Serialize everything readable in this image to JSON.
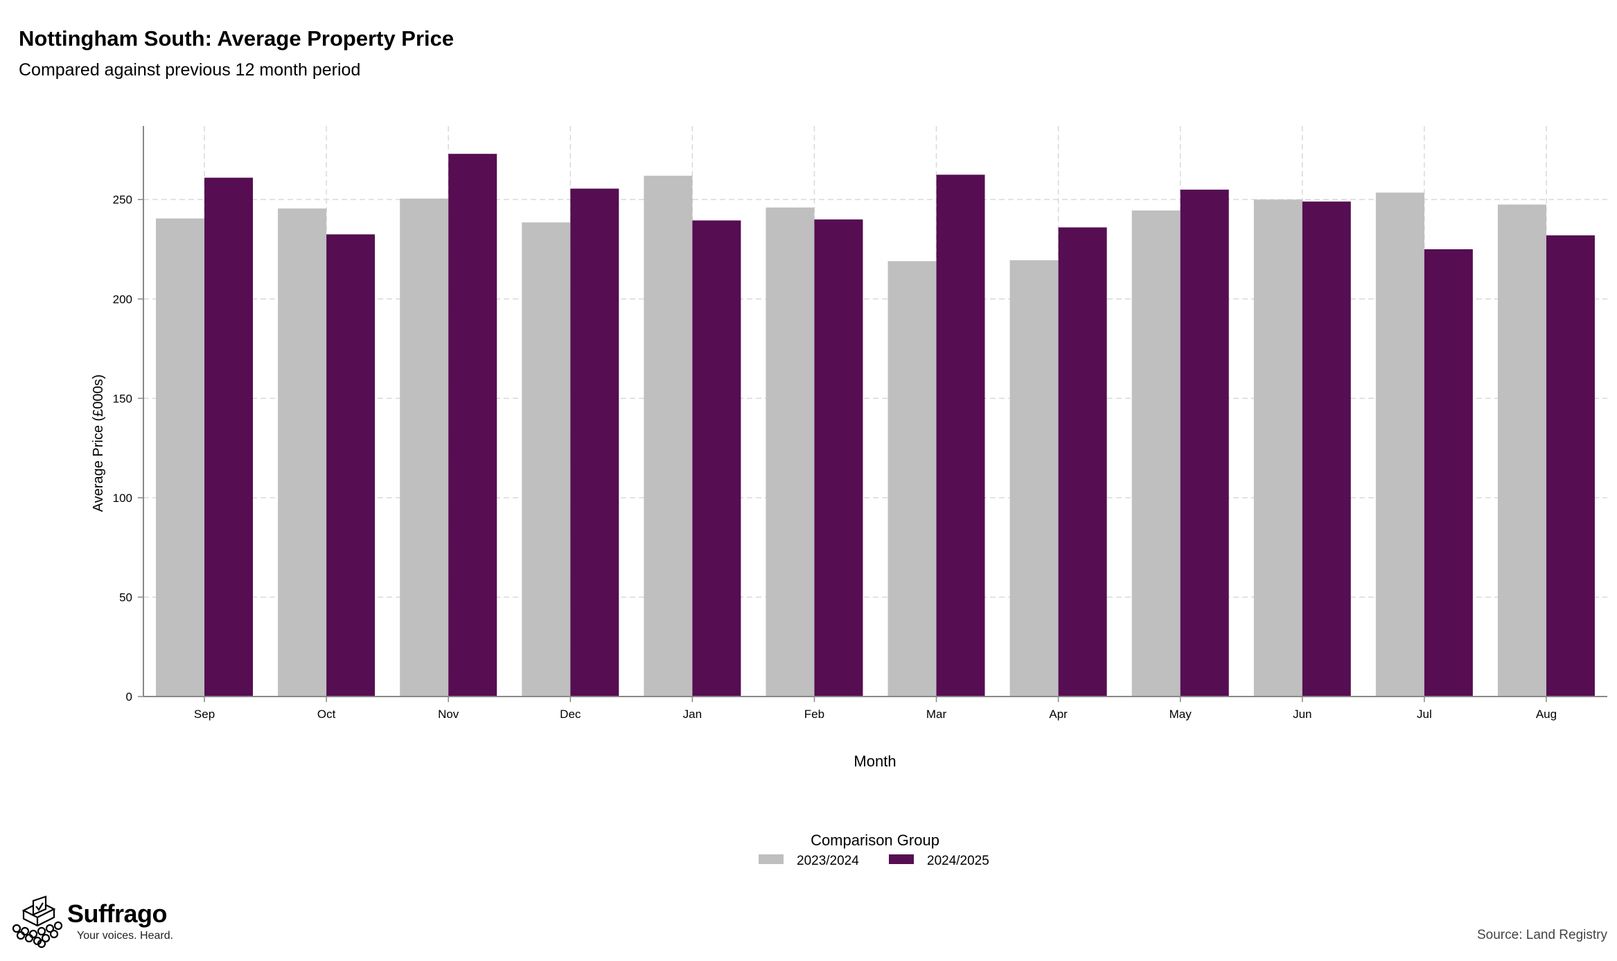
{
  "title": "Nottingham South: Average Property Price",
  "subtitle": "Compared against previous 12 month period",
  "source": "Source: Land Registry",
  "brand": {
    "name": "Suffrago",
    "tagline": "Your voices. Heard."
  },
  "colors": {
    "series_2023": "#bfbfbf",
    "series_2024": "#560d52",
    "grid": "#d9d9d9",
    "axis": "#888888"
  },
  "chart_data": {
    "type": "bar",
    "xlabel": "Month",
    "ylabel": "Average Price (£000s)",
    "ylim": [
      0,
      287
    ],
    "yticks": [
      0,
      50,
      100,
      150,
      200,
      250
    ],
    "grid": true,
    "legend": {
      "title": "Comparison Group",
      "position": "bottom"
    },
    "categories": [
      "Sep",
      "Oct",
      "Nov",
      "Dec",
      "Jan",
      "Feb",
      "Mar",
      "Apr",
      "May",
      "Jun",
      "Jul",
      "Aug"
    ],
    "series": [
      {
        "name": "2023/2024",
        "color": "#bfbfbf",
        "values": [
          240.5,
          245.5,
          250.5,
          238.5,
          262,
          246,
          219,
          219.5,
          244.5,
          250,
          253.5,
          247.5
        ]
      },
      {
        "name": "2024/2025",
        "color": "#560d52",
        "values": [
          261,
          232.5,
          273,
          255.5,
          239.5,
          240,
          262.5,
          236,
          255,
          249,
          225,
          232
        ]
      }
    ]
  }
}
